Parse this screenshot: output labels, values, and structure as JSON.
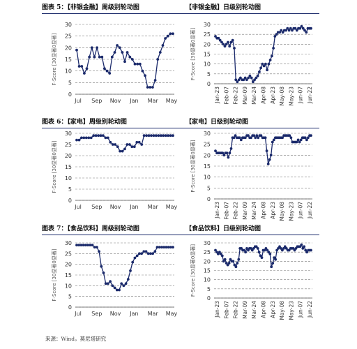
{
  "page": {
    "source": "来源：Wind，莫尼塔研究"
  },
  "rows": [
    {
      "left_title": "图表 5：【非银金融】周级别轮动图",
      "right_title": "【非银金融】日级别轮动图"
    },
    {
      "left_title": "图表 6：【家电】周级别轮动图",
      "right_title": "【家电】日级别轮动图"
    },
    {
      "left_title": "图表 7：【食品饮料】周级别轮动图",
      "right_title": "【食品饮料】日级别轮动图"
    }
  ],
  "style": {
    "line_color": "#1b2a6b",
    "grid_color": "#7a7a7a",
    "title_rule_color": "#1b2a6b"
  },
  "chart_data": [
    {
      "id": "nonbank-weekly",
      "type": "line",
      "title": "【非银金融】周级别轮动图",
      "ylabel": "F-Score [30显著0显著]",
      "ylim": [
        0,
        30
      ],
      "yticks": [
        0,
        5,
        10,
        15,
        20,
        25,
        30
      ],
      "x_tick_labels": [
        "Jul",
        "Sep",
        "Nov",
        "Jan",
        "Mar",
        "May"
      ],
      "grid": "horizontal-dashed",
      "values": [
        19,
        12,
        12,
        9,
        11,
        16,
        20,
        16,
        20,
        16,
        16,
        11,
        10,
        9,
        16,
        18,
        21,
        20,
        18,
        14,
        18,
        16,
        15,
        13,
        13,
        13,
        10,
        8,
        3,
        3,
        3,
        6,
        15,
        18,
        21,
        24,
        25,
        26,
        26
      ]
    },
    {
      "id": "nonbank-daily",
      "type": "line",
      "title": "【非银金融】日级别轮动图",
      "ylabel": "F-Score [30显著0显著]",
      "ylim": [
        0,
        30
      ],
      "yticks": [
        0,
        5,
        10,
        15,
        20,
        25,
        30
      ],
      "x_tick_labels": [
        "Jan-23",
        "Feb-07",
        "Feb-22",
        "Mar-09",
        "Mar-24",
        "Apr-08",
        "Apr-23",
        "May-08",
        "May-23",
        "Jun-07",
        "Jun-22"
      ],
      "grid": "horizontal-dashed",
      "values": [
        24,
        23,
        23,
        22,
        21,
        20,
        19,
        20,
        21,
        19,
        21,
        22,
        18,
        2,
        1,
        2,
        3,
        2,
        2,
        3,
        2,
        3,
        4,
        3,
        1,
        2,
        3,
        4,
        6,
        8,
        10,
        9,
        10,
        7,
        10,
        12,
        14,
        18,
        24,
        25,
        26,
        26,
        27,
        26,
        27,
        27,
        28,
        27,
        28,
        27,
        28,
        28,
        27,
        28,
        28,
        29,
        28,
        27,
        26,
        28,
        28,
        28
      ]
    },
    {
      "id": "appliance-weekly",
      "type": "line",
      "title": "【家电】周级别轮动图",
      "ylabel": "F-Score [30显著0显著]",
      "ylim": [
        0,
        30
      ],
      "yticks": [
        0,
        5,
        10,
        15,
        20,
        25,
        30
      ],
      "x_tick_labels": [
        "Jul",
        "Sep",
        "Nov",
        "Jan",
        "Mar",
        "May"
      ],
      "grid": "horizontal-dashed",
      "values": [
        27,
        27,
        28,
        28,
        28,
        28,
        28,
        29,
        29,
        29,
        29,
        29,
        28,
        28,
        26,
        25,
        25,
        24,
        22,
        22,
        23,
        25,
        25,
        24,
        24,
        26,
        26,
        25,
        29,
        29,
        29,
        29,
        29,
        29,
        29,
        29,
        29,
        29,
        29,
        29,
        29
      ]
    },
    {
      "id": "appliance-daily",
      "type": "line",
      "title": "【家电】日级别轮动图",
      "ylabel": "F-Score [30显著0显著]",
      "ylim": [
        0,
        30
      ],
      "yticks": [
        0,
        5,
        10,
        15,
        20,
        25,
        30
      ],
      "x_tick_labels": [
        "Jan-23",
        "Feb-07",
        "Feb-22",
        "Mar-09",
        "Mar-24",
        "Apr-08",
        "Apr-23",
        "May-08",
        "May-23",
        "Jun-07",
        "Jun-22"
      ],
      "grid": "horizontal-dashed",
      "values": [
        22,
        21,
        21,
        21,
        21,
        21,
        20,
        21,
        21,
        19,
        21,
        23,
        28,
        28,
        29,
        28,
        28,
        28,
        27,
        28,
        28,
        28,
        29,
        29,
        28,
        28,
        29,
        29,
        28,
        29,
        28,
        29,
        29,
        28,
        28,
        28,
        22,
        16,
        18,
        20,
        26,
        27,
        28,
        28,
        28,
        28,
        28,
        28,
        29,
        29,
        29,
        29,
        29,
        28,
        26,
        26,
        26,
        26,
        27,
        26,
        27,
        28,
        28,
        28,
        27,
        28,
        29,
        29
      ]
    },
    {
      "id": "food-weekly",
      "type": "line",
      "title": "【食品饮料】周级别轮动图",
      "ylabel": "F-Score [30显著0显著]",
      "ylim": [
        0,
        30
      ],
      "yticks": [
        0,
        5,
        10,
        15,
        20,
        25,
        30
      ],
      "x_tick_labels": [
        "Jul",
        "Sep",
        "Nov",
        "Jan",
        "Mar",
        "May"
      ],
      "grid": "horizontal-dashed",
      "values": [
        29,
        29,
        29,
        29,
        29,
        29,
        29,
        29,
        28,
        28,
        26,
        19,
        16,
        11,
        11,
        12,
        10,
        9,
        8,
        8,
        11,
        10,
        11,
        13,
        17,
        21,
        23,
        24,
        25,
        25,
        26,
        26,
        25,
        25,
        25,
        26,
        28,
        28,
        28,
        28,
        28,
        28,
        28,
        28
      ]
    },
    {
      "id": "food-daily",
      "type": "line",
      "title": "【食品饮料】日级别轮动图",
      "ylabel": "F-Score [30显著0显著]",
      "ylim": [
        0,
        30
      ],
      "yticks": [
        0,
        5,
        10,
        15,
        20,
        25,
        30
      ],
      "x_tick_labels": [
        "Jan-23",
        "Feb-07",
        "Feb-22",
        "Mar-09",
        "Mar-24",
        "Apr-08",
        "Apr-23",
        "May-08",
        "May-23",
        "Jun-07",
        "Jun-22"
      ],
      "grid": "horizontal-dashed",
      "values": [
        26,
        25,
        24,
        25,
        24,
        23,
        20,
        21,
        19,
        18,
        19,
        21,
        20,
        20,
        18,
        17,
        19,
        21,
        27,
        27,
        26,
        26,
        25,
        27,
        26,
        27,
        27,
        26,
        27,
        28,
        28,
        27,
        25,
        23,
        22,
        26,
        26,
        27,
        26,
        25,
        24,
        17,
        19,
        22,
        21,
        26,
        27,
        28,
        27,
        26,
        27,
        28,
        27,
        26,
        26,
        27,
        27,
        27,
        26,
        27,
        28,
        28,
        28,
        29,
        27,
        28,
        26,
        25,
        26,
        26,
        26
      ]
    }
  ]
}
